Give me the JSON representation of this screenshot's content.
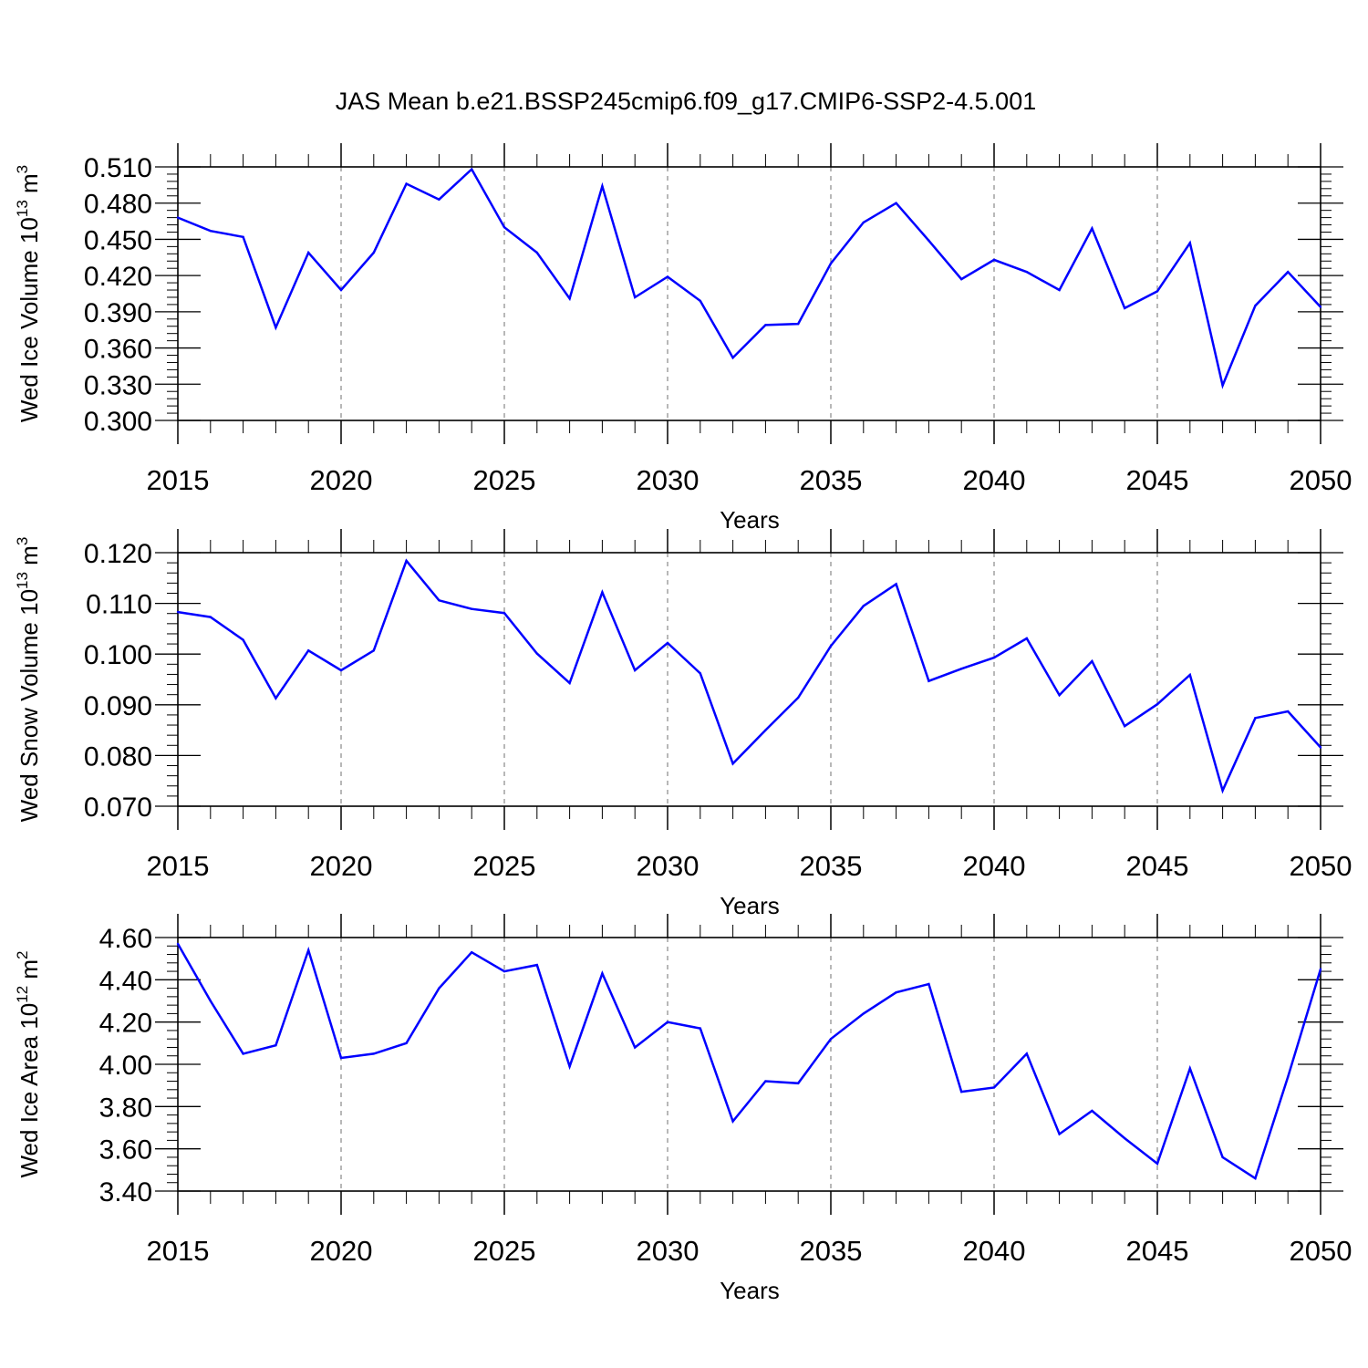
{
  "title": "JAS Mean b.e21.BSSP245cmip6.f09_g17.CMIP6-SSP2-4.5.001",
  "line_color": "#0000ff",
  "chart_data": [
    {
      "type": "line",
      "ylabel": {
        "text": "Wed Ice Volume 10",
        "exp": "13",
        "unit": " m",
        "unit_exp": "3"
      },
      "xlabel": "Years",
      "xlim": [
        2015,
        2050
      ],
      "ylim": [
        0.3,
        0.51
      ],
      "x_ticks": [
        2015,
        2020,
        2025,
        2030,
        2035,
        2040,
        2045,
        2050
      ],
      "y_ticks": [
        "0.300",
        "0.330",
        "0.360",
        "0.390",
        "0.420",
        "0.450",
        "0.480",
        "0.510"
      ],
      "grid": "vertical dashed at major x ticks",
      "x": [
        2015,
        2016,
        2017,
        2018,
        2019,
        2020,
        2021,
        2022,
        2023,
        2024,
        2025,
        2026,
        2027,
        2028,
        2029,
        2030,
        2031,
        2032,
        2033,
        2034,
        2035,
        2036,
        2037,
        2038,
        2039,
        2040,
        2041,
        2042,
        2043,
        2044,
        2045,
        2046,
        2047,
        2048,
        2049,
        2050
      ],
      "values": [
        0.468,
        0.457,
        0.452,
        0.377,
        0.439,
        0.408,
        0.439,
        0.496,
        0.483,
        0.508,
        0.46,
        0.439,
        0.401,
        0.494,
        0.402,
        0.419,
        0.399,
        0.352,
        0.379,
        0.38,
        0.43,
        0.464,
        0.48,
        0.449,
        0.417,
        0.433,
        0.423,
        0.408,
        0.459,
        0.393,
        0.407,
        0.447,
        0.329,
        0.395,
        0.423,
        0.394
      ]
    },
    {
      "type": "line",
      "ylabel": {
        "text": "Wed Snow Volume 10",
        "exp": "13",
        "unit": " m",
        "unit_exp": "3"
      },
      "xlabel": "Years",
      "xlim": [
        2015,
        2050
      ],
      "ylim": [
        0.07,
        0.12
      ],
      "x_ticks": [
        2015,
        2020,
        2025,
        2030,
        2035,
        2040,
        2045,
        2050
      ],
      "y_ticks": [
        "0.070",
        "0.080",
        "0.090",
        "0.100",
        "0.110",
        "0.120"
      ],
      "grid": "vertical dashed at major x ticks",
      "x": [
        2015,
        2016,
        2017,
        2018,
        2019,
        2020,
        2021,
        2022,
        2023,
        2024,
        2025,
        2026,
        2027,
        2028,
        2029,
        2030,
        2031,
        2032,
        2033,
        2034,
        2035,
        2036,
        2037,
        2038,
        2039,
        2040,
        2041,
        2042,
        2043,
        2044,
        2045,
        2046,
        2047,
        2048,
        2049,
        2050
      ],
      "values": [
        0.1083,
        0.1073,
        0.1028,
        0.0913,
        0.1007,
        0.0968,
        0.1007,
        0.1184,
        0.1106,
        0.1089,
        0.1081,
        0.1001,
        0.0943,
        0.1122,
        0.0968,
        0.1022,
        0.0962,
        0.0784,
        0.085,
        0.0914,
        0.1016,
        0.1095,
        0.1138,
        0.0947,
        0.0971,
        0.0993,
        0.1031,
        0.0919,
        0.0986,
        0.0858,
        0.0901,
        0.0959,
        0.0731,
        0.0874,
        0.0887,
        0.0816
      ]
    },
    {
      "type": "line",
      "ylabel": {
        "text": "Wed Ice Area 10",
        "exp": "12",
        "unit": " m",
        "unit_exp": "2"
      },
      "xlabel": "Years",
      "xlim": [
        2015,
        2050
      ],
      "ylim": [
        3.4,
        4.6
      ],
      "x_ticks": [
        2015,
        2020,
        2025,
        2030,
        2035,
        2040,
        2045,
        2050
      ],
      "y_ticks": [
        "3.40",
        "3.60",
        "3.80",
        "4.00",
        "4.20",
        "4.40",
        "4.60"
      ],
      "grid": "vertical dashed at major x ticks",
      "x": [
        2015,
        2016,
        2017,
        2018,
        2019,
        2020,
        2021,
        2022,
        2023,
        2024,
        2025,
        2026,
        2027,
        2028,
        2029,
        2030,
        2031,
        2032,
        2033,
        2034,
        2035,
        2036,
        2037,
        2038,
        2039,
        2040,
        2041,
        2042,
        2043,
        2044,
        2045,
        2046,
        2047,
        2048,
        2049,
        2050
      ],
      "values": [
        4.57,
        4.3,
        4.05,
        4.09,
        4.54,
        4.03,
        4.05,
        4.1,
        4.36,
        4.53,
        4.44,
        4.47,
        3.99,
        4.43,
        4.08,
        4.2,
        4.17,
        3.73,
        3.92,
        3.91,
        4.12,
        4.24,
        4.34,
        4.38,
        3.87,
        3.89,
        4.05,
        3.67,
        3.78,
        3.65,
        3.53,
        3.98,
        3.56,
        3.46,
        3.94,
        4.45
      ]
    }
  ]
}
